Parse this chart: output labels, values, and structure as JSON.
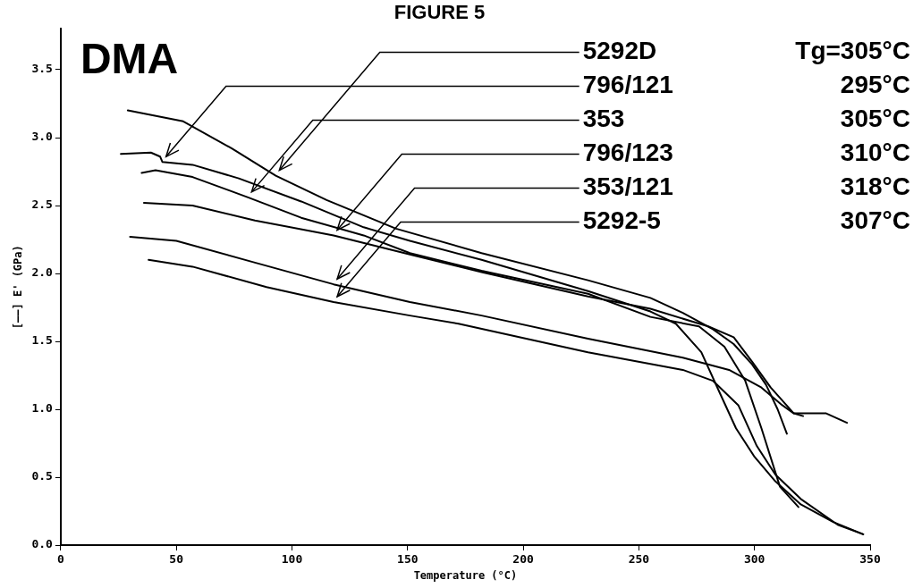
{
  "chart_data": {
    "type": "line",
    "title": "FIGURE 5",
    "xlabel": "Temperature (°C)",
    "ylabel": "[——] E' (GPa)",
    "xlim": [
      0,
      350
    ],
    "xticks": [
      0,
      50,
      100,
      150,
      200,
      250,
      300,
      350
    ],
    "ylim": [
      0,
      3.8
    ],
    "yticks": [
      {
        "value": 0,
        "label": "0.0"
      },
      {
        "value": 0.5,
        "label": "0.5"
      },
      {
        "value": 1,
        "label": "1.0"
      },
      {
        "value": 1.5,
        "label": "1.5"
      },
      {
        "value": 2,
        "label": "2.0"
      },
      {
        "value": 2.5,
        "label": "2.5"
      },
      {
        "value": 3,
        "label": "3.0"
      },
      {
        "value": 3.5,
        "label": "3.5"
      }
    ],
    "grid": false,
    "legend": false,
    "marker": "none",
    "line_style": "solid",
    "annotations": [
      "DMA",
      "Tg=305°C",
      "295°C",
      "305°C",
      "310°C",
      "318°C",
      "307°C"
    ],
    "series": [
      {
        "name": "5292D",
        "color": "#000000",
        "x": [
          29,
          53,
          74,
          93,
          115,
          145,
          182,
          228,
          255,
          269,
          282,
          291,
          299,
          305,
          310,
          314
        ],
        "values": [
          3.2,
          3.12,
          2.92,
          2.72,
          2.54,
          2.33,
          2.15,
          1.95,
          1.82,
          1.71,
          1.59,
          1.48,
          1.33,
          1.18,
          1.0,
          0.82
        ]
      },
      {
        "name": "796/121",
        "color": "#000000",
        "x": [
          26,
          39,
          43,
          44,
          57,
          77,
          104,
          131,
          151,
          182,
          228,
          255,
          266,
          277,
          285,
          292,
          300,
          309,
          320,
          334,
          347
        ],
        "values": [
          2.88,
          2.89,
          2.86,
          2.82,
          2.8,
          2.7,
          2.53,
          2.34,
          2.24,
          2.1,
          1.87,
          1.72,
          1.63,
          1.42,
          1.12,
          0.86,
          0.65,
          0.47,
          0.3,
          0.17,
          0.08
        ]
      },
      {
        "name": "353",
        "color": "#000000",
        "x": [
          35,
          41,
          57,
          81,
          104,
          131,
          151,
          182,
          228,
          255,
          276,
          287,
          296,
          303,
          311,
          319
        ],
        "values": [
          2.74,
          2.76,
          2.71,
          2.56,
          2.41,
          2.28,
          2.15,
          2.02,
          1.85,
          1.68,
          1.61,
          1.46,
          1.21,
          0.86,
          0.43,
          0.28
        ]
      },
      {
        "name": "796/123",
        "color": "#000000",
        "x": [
          36,
          57,
          84,
          118,
          151,
          182,
          228,
          255,
          280,
          291,
          299,
          307,
          317,
          321
        ],
        "values": [
          2.52,
          2.5,
          2.39,
          2.28,
          2.14,
          2.01,
          1.83,
          1.74,
          1.61,
          1.53,
          1.35,
          1.16,
          0.97,
          0.95
        ]
      },
      {
        "name": "353/121",
        "color": "#000000",
        "x": [
          30,
          50,
          84,
          118,
          151,
          182,
          228,
          269,
          289,
          303,
          312,
          317,
          331,
          340
        ],
        "values": [
          2.27,
          2.24,
          2.08,
          1.92,
          1.79,
          1.69,
          1.52,
          1.38,
          1.29,
          1.16,
          1.03,
          0.97,
          0.97,
          0.9
        ]
      },
      {
        "name": "5292-5",
        "color": "#000000",
        "x": [
          38,
          57,
          89,
          118,
          151,
          172,
          228,
          269,
          282,
          293,
          301,
          309,
          320,
          336,
          347
        ],
        "values": [
          2.1,
          2.05,
          1.9,
          1.79,
          1.69,
          1.63,
          1.42,
          1.29,
          1.21,
          1.03,
          0.73,
          0.52,
          0.34,
          0.15,
          0.08
        ]
      }
    ]
  }
}
